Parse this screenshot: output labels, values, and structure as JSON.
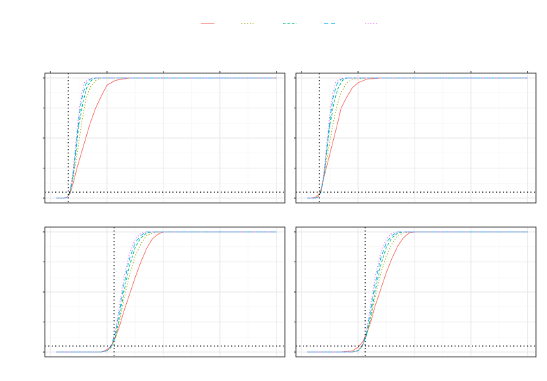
{
  "chart_data": {
    "type": "line",
    "layout": "2x2 facet grid",
    "legend": {
      "placement": "top",
      "entries": [
        {
          "color": "#F8766D",
          "dash": "solid"
        },
        {
          "color": "#A3A500",
          "dash": "dotted"
        },
        {
          "color": "#00BF7D",
          "dash": "dashed"
        },
        {
          "color": "#00B0F6",
          "dash": "longdash"
        },
        {
          "color": "#E76BF3",
          "dash": "dotted"
        }
      ]
    },
    "grid": true,
    "xlim": [
      -1,
      7.5
    ],
    "ylim": [
      -0.04,
      1.04
    ],
    "x_ticks": [
      -0.8,
      1.2,
      3.2,
      5.2,
      7.2
    ],
    "y_ticks": [
      0,
      0.25,
      0.5,
      0.75,
      1
    ],
    "x_tick_labels": [],
    "y_tick_labels": [],
    "panels": [
      {
        "threshold_x": -0.17,
        "threshold_y": 0.05,
        "series": [
          {
            "x": [
              -0.6,
              -0.45,
              -0.3,
              -0.2,
              -0.1,
              0,
              0.15,
              0.3,
              0.45,
              0.6,
              0.8,
              1.0,
              1.2,
              1.5,
              2,
              3,
              4,
              5,
              6,
              7.2
            ],
            "y": [
              0,
              0,
              0,
              0.01,
              0.04,
              0.12,
              0.26,
              0.38,
              0.5,
              0.62,
              0.75,
              0.85,
              0.94,
              0.98,
              1,
              1,
              1,
              1,
              1,
              1
            ]
          },
          {
            "x": [
              -0.6,
              -0.45,
              -0.3,
              -0.2,
              -0.1,
              0,
              0.15,
              0.3,
              0.45,
              0.6,
              0.8,
              1.0,
              1.5,
              2,
              3,
              4,
              5,
              6,
              7.2
            ],
            "y": [
              0,
              0,
              0,
              0.01,
              0.05,
              0.16,
              0.38,
              0.62,
              0.82,
              0.92,
              0.98,
              1,
              1,
              1,
              1,
              1,
              1,
              1,
              1
            ]
          },
          {
            "x": [
              -0.6,
              -0.45,
              -0.3,
              -0.2,
              -0.1,
              0,
              0.1,
              0.2,
              0.35,
              0.5,
              0.65,
              0.8,
              1.0,
              1.5,
              2,
              3,
              4,
              5,
              6,
              7.2
            ],
            "y": [
              0,
              0,
              0,
              0.01,
              0.05,
              0.18,
              0.38,
              0.6,
              0.8,
              0.93,
              0.98,
              1,
              1,
              1,
              1,
              1,
              1,
              1,
              1,
              1
            ]
          },
          {
            "x": [
              -0.6,
              -0.45,
              -0.3,
              -0.2,
              -0.1,
              0,
              0.1,
              0.2,
              0.3,
              0.45,
              0.6,
              0.8,
              1.0,
              1.5,
              2,
              3,
              4,
              5,
              6,
              7.2
            ],
            "y": [
              0,
              0,
              0,
              0.01,
              0.06,
              0.2,
              0.42,
              0.65,
              0.82,
              0.95,
              0.99,
              1,
              1,
              1,
              1,
              1,
              1,
              1,
              1,
              1
            ]
          },
          {
            "x": [
              -0.6,
              -0.45,
              -0.3,
              -0.2,
              -0.1,
              0,
              0.1,
              0.2,
              0.3,
              0.4,
              0.55,
              0.7,
              1.0,
              1.5,
              2,
              3,
              4,
              5,
              6,
              7.2
            ],
            "y": [
              0,
              0,
              0,
              0.01,
              0.07,
              0.23,
              0.47,
              0.7,
              0.86,
              0.96,
              0.99,
              1,
              1,
              1,
              1,
              1,
              1,
              1,
              1,
              1
            ]
          }
        ]
      },
      {
        "threshold_x": -0.17,
        "threshold_y": 0.05,
        "series": [
          {
            "x": [
              -0.6,
              -0.45,
              -0.3,
              -0.2,
              -0.1,
              0,
              0.15,
              0.3,
              0.45,
              0.6,
              0.8,
              1.0,
              1.2,
              1.5,
              2,
              3,
              4,
              5,
              6,
              7.2
            ],
            "y": [
              0,
              0,
              0.01,
              0.03,
              0.08,
              0.18,
              0.32,
              0.46,
              0.6,
              0.75,
              0.84,
              0.92,
              0.96,
              0.99,
              1,
              1,
              1,
              1,
              1,
              1
            ]
          },
          {
            "x": [
              -0.6,
              -0.45,
              -0.3,
              -0.2,
              -0.1,
              0,
              0.15,
              0.3,
              0.45,
              0.6,
              0.8,
              1.0,
              1.5,
              2,
              3,
              4,
              5,
              6,
              7.2
            ],
            "y": [
              0,
              0,
              0,
              0.02,
              0.07,
              0.2,
              0.4,
              0.6,
              0.77,
              0.88,
              0.96,
              0.99,
              1,
              1,
              1,
              1,
              1,
              1,
              1
            ]
          },
          {
            "x": [
              -0.6,
              -0.45,
              -0.3,
              -0.2,
              -0.1,
              0,
              0.1,
              0.2,
              0.35,
              0.5,
              0.65,
              0.8,
              1.0,
              1.5,
              2,
              3,
              4,
              5,
              6,
              7.2
            ],
            "y": [
              0,
              0,
              0,
              0.01,
              0.06,
              0.2,
              0.4,
              0.6,
              0.8,
              0.92,
              0.98,
              1,
              1,
              1,
              1,
              1,
              1,
              1,
              1,
              1
            ]
          },
          {
            "x": [
              -0.6,
              -0.45,
              -0.3,
              -0.2,
              -0.1,
              0,
              0.1,
              0.2,
              0.3,
              0.45,
              0.6,
              0.8,
              1.0,
              1.5,
              2,
              3,
              4,
              5,
              6,
              7.2
            ],
            "y": [
              0,
              0,
              0,
              0.01,
              0.06,
              0.2,
              0.42,
              0.64,
              0.82,
              0.95,
              0.99,
              1,
              1,
              1,
              1,
              1,
              1,
              1,
              1,
              1
            ]
          },
          {
            "x": [
              -0.6,
              -0.45,
              -0.3,
              -0.2,
              -0.1,
              0,
              0.1,
              0.2,
              0.3,
              0.4,
              0.55,
              0.7,
              1.0,
              1.5,
              2,
              3,
              4,
              5,
              6,
              7.2
            ],
            "y": [
              0,
              0,
              0,
              0.01,
              0.07,
              0.23,
              0.47,
              0.7,
              0.86,
              0.96,
              0.99,
              1,
              1,
              1,
              1,
              1,
              1,
              1,
              1,
              1
            ]
          }
        ]
      },
      {
        "threshold_x": 1.45,
        "threshold_y": 0.05,
        "series": [
          {
            "x": [
              -0.6,
              0,
              0.6,
              1.0,
              1.2,
              1.35,
              1.5,
              1.65,
              1.8,
              2.0,
              2.2,
              2.4,
              2.6,
              2.8,
              3.0,
              3.2,
              3.5,
              4,
              5,
              6,
              7.2
            ],
            "y": [
              0,
              0,
              0,
              0,
              0.02,
              0.05,
              0.12,
              0.22,
              0.34,
              0.48,
              0.62,
              0.75,
              0.86,
              0.94,
              0.98,
              1,
              1,
              1,
              1,
              1,
              1
            ]
          },
          {
            "x": [
              -0.6,
              0,
              0.6,
              1.0,
              1.2,
              1.35,
              1.5,
              1.65,
              1.8,
              2.0,
              2.2,
              2.4,
              2.6,
              2.8,
              3.0,
              3.5,
              4,
              5,
              6,
              7.2
            ],
            "y": [
              0,
              0,
              0,
              0,
              0.01,
              0.04,
              0.12,
              0.26,
              0.44,
              0.64,
              0.8,
              0.9,
              0.97,
              0.99,
              1,
              1,
              1,
              1,
              1,
              1
            ]
          },
          {
            "x": [
              -0.6,
              0,
              0.6,
              1.0,
              1.2,
              1.35,
              1.5,
              1.65,
              1.8,
              2.0,
              2.2,
              2.4,
              2.6,
              2.8,
              3.0,
              3.5,
              4,
              5,
              6,
              7.2
            ],
            "y": [
              0,
              0,
              0,
              0,
              0.01,
              0.04,
              0.13,
              0.3,
              0.5,
              0.72,
              0.87,
              0.95,
              0.99,
              1,
              1,
              1,
              1,
              1,
              1,
              1
            ]
          },
          {
            "x": [
              -0.6,
              0,
              0.6,
              1.0,
              1.2,
              1.35,
              1.5,
              1.65,
              1.8,
              2.0,
              2.2,
              2.4,
              2.6,
              2.8,
              3.0,
              3.5,
              4,
              5,
              6,
              7.2
            ],
            "y": [
              0,
              0,
              0,
              0,
              0.01,
              0.05,
              0.16,
              0.35,
              0.56,
              0.78,
              0.91,
              0.97,
              1,
              1,
              1,
              1,
              1,
              1,
              1,
              1
            ]
          },
          {
            "x": [
              -0.6,
              0,
              0.6,
              1.0,
              1.2,
              1.35,
              1.5,
              1.65,
              1.8,
              2.0,
              2.2,
              2.4,
              2.6,
              2.8,
              3.0,
              3.5,
              4,
              5,
              6,
              7.2
            ],
            "y": [
              0,
              0,
              0,
              0,
              0.01,
              0.05,
              0.18,
              0.4,
              0.62,
              0.82,
              0.94,
              0.99,
              1,
              1,
              1,
              1,
              1,
              1,
              1,
              1
            ]
          }
        ]
      },
      {
        "threshold_x": 1.45,
        "threshold_y": 0.05,
        "series": [
          {
            "x": [
              -0.6,
              0,
              0.6,
              1.0,
              1.2,
              1.35,
              1.5,
              1.65,
              1.8,
              2.0,
              2.2,
              2.4,
              2.6,
              2.8,
              3.0,
              3.2,
              3.5,
              4,
              5,
              6,
              7.2
            ],
            "y": [
              0,
              0,
              0,
              0.01,
              0.04,
              0.08,
              0.15,
              0.25,
              0.38,
              0.52,
              0.66,
              0.78,
              0.88,
              0.95,
              0.99,
              1,
              1,
              1,
              1,
              1,
              1
            ]
          },
          {
            "x": [
              -0.6,
              0,
              0.6,
              1.0,
              1.2,
              1.35,
              1.5,
              1.65,
              1.8,
              2.0,
              2.2,
              2.4,
              2.6,
              2.8,
              3.0,
              3.5,
              4,
              5,
              6,
              7.2
            ],
            "y": [
              0,
              0,
              0,
              0,
              0.02,
              0.06,
              0.14,
              0.28,
              0.45,
              0.65,
              0.8,
              0.9,
              0.97,
              0.99,
              1,
              1,
              1,
              1,
              1,
              1
            ]
          },
          {
            "x": [
              -0.6,
              0,
              0.6,
              1.0,
              1.2,
              1.35,
              1.5,
              1.65,
              1.8,
              2.0,
              2.2,
              2.4,
              2.6,
              2.8,
              3.0,
              3.5,
              4,
              5,
              6,
              7.2
            ],
            "y": [
              0,
              0,
              0,
              0,
              0.01,
              0.05,
              0.14,
              0.3,
              0.5,
              0.72,
              0.87,
              0.95,
              0.99,
              1,
              1,
              1,
              1,
              1,
              1,
              1
            ]
          },
          {
            "x": [
              -0.6,
              0,
              0.6,
              1.0,
              1.2,
              1.35,
              1.5,
              1.65,
              1.8,
              2.0,
              2.2,
              2.4,
              2.6,
              2.8,
              3.0,
              3.5,
              4,
              5,
              6,
              7.2
            ],
            "y": [
              0,
              0,
              0,
              0,
              0.01,
              0.05,
              0.16,
              0.35,
              0.56,
              0.78,
              0.91,
              0.97,
              1,
              1,
              1,
              1,
              1,
              1,
              1,
              1
            ]
          },
          {
            "x": [
              -0.6,
              0,
              0.6,
              1.0,
              1.2,
              1.35,
              1.5,
              1.65,
              1.8,
              2.0,
              2.2,
              2.4,
              2.6,
              2.8,
              3.0,
              3.5,
              4,
              5,
              6,
              7.2
            ],
            "y": [
              0,
              0,
              0,
              0,
              0.01,
              0.05,
              0.18,
              0.4,
              0.62,
              0.82,
              0.94,
              0.99,
              1,
              1,
              1,
              1,
              1,
              1,
              1,
              1
            ]
          }
        ]
      }
    ]
  }
}
